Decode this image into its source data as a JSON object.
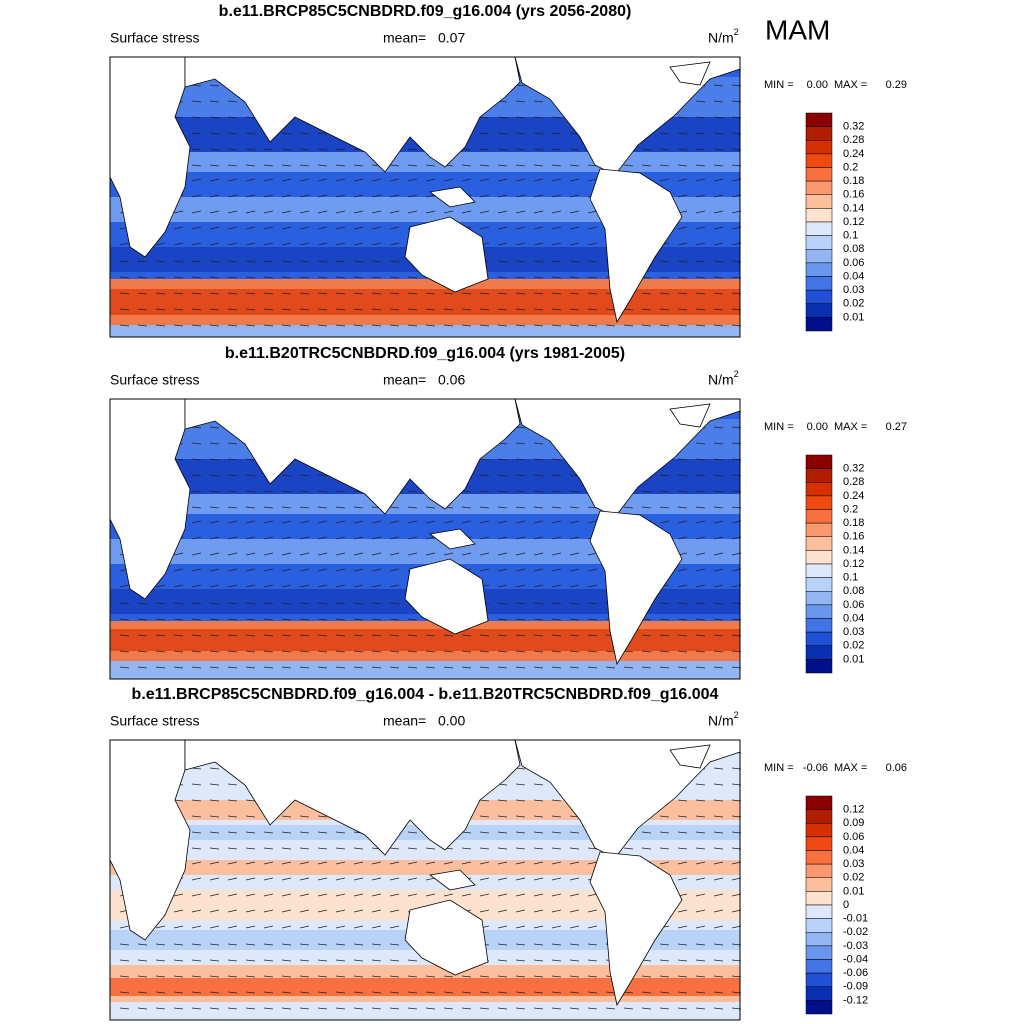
{
  "title": "MAM",
  "panels": [
    {
      "title": "b.e11.BRCP85C5CNBDRD.f09_g16.004 (yrs 2056-2080)",
      "left_label": "Surface stress",
      "mean_label": "mean=",
      "mean": "0.07",
      "units": "N/m",
      "units_exp": "2",
      "min_label": "MIN =",
      "min": "0.00",
      "max_label": "MAX =",
      "max": "0.29",
      "colorbar": {
        "labels": [
          "0.32",
          "0.28",
          "0.24",
          "0.2",
          "0.18",
          "0.16",
          "0.14",
          "0.12",
          "0.1",
          "0.08",
          "0.06",
          "0.04",
          "0.03",
          "0.02",
          "0.01"
        ],
        "colors": [
          "#8b0000",
          "#b01e00",
          "#d43000",
          "#ee4a12",
          "#f87040",
          "#fa9870",
          "#fcbf9e",
          "#fde3cf",
          "#dde9fb",
          "#b9d2f8",
          "#93b6f3",
          "#6a97ee",
          "#4274e6",
          "#2050d6",
          "#0a2fb0",
          "#00108a"
        ]
      }
    },
    {
      "title": "b.e11.B20TRC5CNBDRD.f09_g16.004 (yrs 1981-2005)",
      "left_label": "Surface stress",
      "mean_label": "mean=",
      "mean": "0.06",
      "units": "N/m",
      "units_exp": "2",
      "min_label": "MIN =",
      "min": "0.00",
      "max_label": "MAX =",
      "max": "0.27",
      "colorbar": {
        "labels": [
          "0.32",
          "0.28",
          "0.24",
          "0.2",
          "0.18",
          "0.16",
          "0.14",
          "0.12",
          "0.1",
          "0.08",
          "0.06",
          "0.04",
          "0.03",
          "0.02",
          "0.01"
        ],
        "colors": [
          "#8b0000",
          "#b01e00",
          "#d43000",
          "#ee4a12",
          "#f87040",
          "#fa9870",
          "#fcbf9e",
          "#fde3cf",
          "#dde9fb",
          "#b9d2f8",
          "#93b6f3",
          "#6a97ee",
          "#4274e6",
          "#2050d6",
          "#0a2fb0",
          "#00108a"
        ]
      }
    },
    {
      "title": "b.e11.BRCP85C5CNBDRD.f09_g16.004 - b.e11.B20TRC5CNBDRD.f09_g16.004",
      "left_label": "Surface stress",
      "mean_label": "mean=",
      "mean": "0.00",
      "units": "N/m",
      "units_exp": "2",
      "min_label": "MIN =",
      "min": "-0.06",
      "max_label": "MAX =",
      "max": "0.06",
      "colorbar": {
        "labels": [
          "0.12",
          "0.09",
          "0.06",
          "0.04",
          "0.03",
          "0.02",
          "0.01",
          "0",
          "-0.01",
          "-0.02",
          "-0.03",
          "-0.04",
          "-0.06",
          "-0.09",
          "-0.12"
        ],
        "colors": [
          "#8b0000",
          "#b01e00",
          "#d43000",
          "#ee4a12",
          "#f87040",
          "#fa9870",
          "#fcbf9e",
          "#fde3cf",
          "#dde9fb",
          "#b9d2f8",
          "#93b6f3",
          "#6a97ee",
          "#4274e6",
          "#2050d6",
          "#0a2fb0",
          "#00108a"
        ]
      }
    }
  ]
}
